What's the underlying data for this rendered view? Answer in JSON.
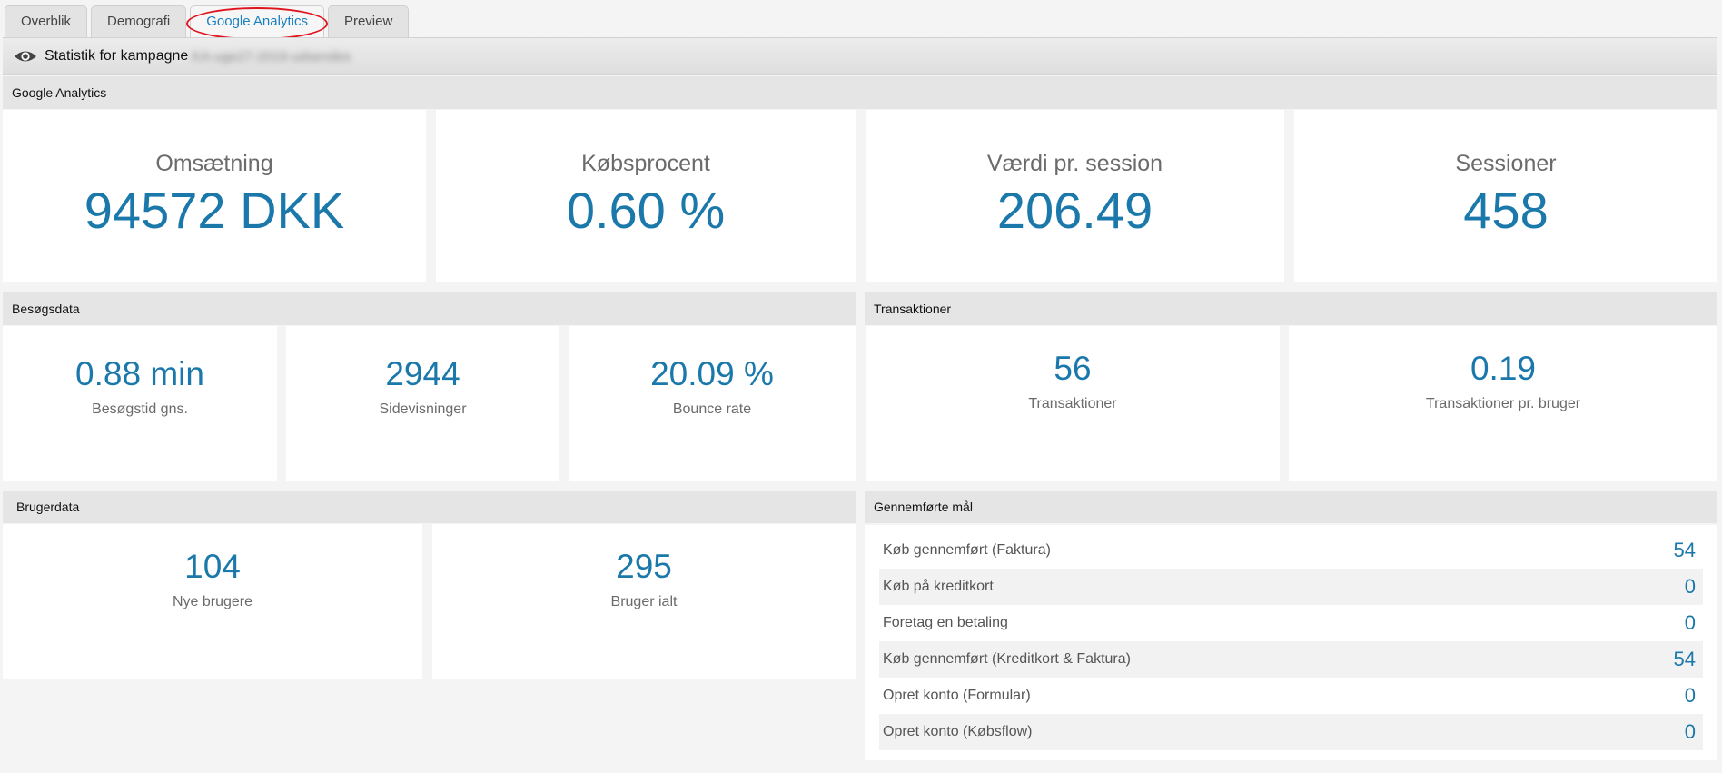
{
  "tabs": [
    {
      "label": "Overblik"
    },
    {
      "label": "Demografi"
    },
    {
      "label": "Google Analytics"
    },
    {
      "label": "Preview"
    }
  ],
  "campaign": {
    "prefix": "Statistik for kampagne",
    "name": "KA-uge27-2019-udsendes"
  },
  "google_analytics": {
    "header": "Google Analytics",
    "kpis": [
      {
        "label": "Omsætning",
        "value": "94572 DKK"
      },
      {
        "label": "Købsprocent",
        "value": "0.60 %"
      },
      {
        "label": "Værdi pr. session",
        "value": "206.49"
      },
      {
        "label": "Sessioner",
        "value": "458"
      }
    ]
  },
  "visit_data": {
    "header": "Besøgsdata",
    "stats": [
      {
        "value": "0.88 min",
        "label": "Besøgstid gns."
      },
      {
        "value": "2944",
        "label": "Sidevisninger"
      },
      {
        "value": "20.09 %",
        "label": "Bounce rate"
      }
    ]
  },
  "transactions": {
    "header": "Transaktioner",
    "stats": [
      {
        "value": "56",
        "label": "Transaktioner"
      },
      {
        "value": "0.19",
        "label": "Transaktioner pr. bruger"
      }
    ]
  },
  "user_data": {
    "header": "Brugerdata",
    "stats": [
      {
        "value": "104",
        "label": "Nye brugere"
      },
      {
        "value": "295",
        "label": "Bruger ialt"
      }
    ]
  },
  "goals": {
    "header": "Gennemførte mål",
    "items": [
      {
        "label": "Køb gennemført (Faktura)",
        "value": "54"
      },
      {
        "label": "Køb på kreditkort",
        "value": "0"
      },
      {
        "label": "Foretag en betaling",
        "value": "0"
      },
      {
        "label": "Køb gennemført (Kreditkort & Faktura)",
        "value": "54"
      },
      {
        "label": "Opret konto (Formular)",
        "value": "0"
      },
      {
        "label": "Opret konto (Købsflow)",
        "value": "0"
      }
    ]
  },
  "colors": {
    "accent": "#1b78aa",
    "tab_active_text": "#1a7fc1",
    "highlight_ring": "#e0141e"
  }
}
